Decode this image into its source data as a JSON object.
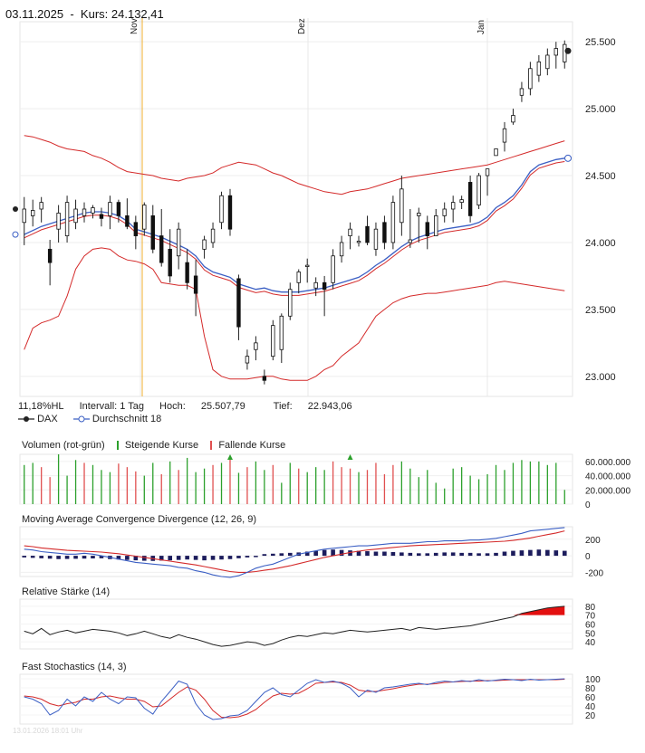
{
  "header": {
    "date": "03.11.2025",
    "separator": "-",
    "kurs_label": "Kurs:",
    "kurs_value": "24.132,41"
  },
  "info": {
    "hl": "11,18%HL",
    "interval": "Intervall: 1 Tag",
    "hoch_label": "Hoch:",
    "hoch_value": "25.507,79",
    "tief_label": "Tief:",
    "tief_value": "22.943,06"
  },
  "legend": {
    "series1": "DAX",
    "series2": "Durchschnitt 18"
  },
  "volume_legend": {
    "title": "Volumen (rot-grün)",
    "up": "Steigende Kurse",
    "down": "Fallende Kurse"
  },
  "footer": "13.01.2026 18:01 Uhr",
  "colors": {
    "up": "#2ca02c",
    "down": "#e05050",
    "band": "#d42a2a",
    "ma": "#3b5fc4",
    "marker": "#f0b030",
    "macd_bar": "#1c1c5c",
    "rsi_fill": "#e31010"
  },
  "chart_data": [
    {
      "type": "candlestick",
      "panel": "price",
      "x_labels": [
        "Nov",
        "Dez",
        "Jan"
      ],
      "y_ticks": [
        "25.500",
        "25.000",
        "24.500",
        "24.000",
        "23.500",
        "23.000"
      ],
      "ylim": [
        22850,
        25650
      ],
      "ohlc": [
        [
          24150,
          24340,
          23980,
          24250
        ],
        [
          24200,
          24320,
          24120,
          24240
        ],
        [
          24250,
          24340,
          24150,
          24300
        ],
        [
          23950,
          24020,
          23680,
          23850
        ],
        [
          24100,
          24280,
          24000,
          24220
        ],
        [
          24050,
          24350,
          24000,
          24300
        ],
        [
          24150,
          24320,
          24100,
          24250
        ],
        [
          24200,
          24300,
          24150,
          24250
        ],
        [
          24220,
          24280,
          24180,
          24260
        ],
        [
          24210,
          24260,
          24120,
          24180
        ],
        [
          24200,
          24350,
          24100,
          24300
        ],
        [
          24300,
          24320,
          24150,
          24200
        ],
        [
          24200,
          24330,
          24100,
          24120
        ],
        [
          24150,
          24200,
          23950,
          24050
        ],
        [
          24100,
          24300,
          24050,
          24280
        ],
        [
          24200,
          24280,
          23920,
          23950
        ],
        [
          24050,
          24250,
          23820,
          23850
        ],
        [
          23950,
          24100,
          23700,
          23750
        ],
        [
          23900,
          24150,
          23800,
          24100
        ],
        [
          23850,
          23950,
          23650,
          23700
        ],
        [
          23750,
          23870,
          23450,
          23620
        ],
        [
          23950,
          24050,
          23880,
          24020
        ],
        [
          24000,
          24150,
          23960,
          24100
        ],
        [
          24150,
          24380,
          24100,
          24350
        ],
        [
          24350,
          24400,
          24050,
          24100
        ],
        [
          23730,
          23760,
          23270,
          23370
        ],
        [
          23100,
          23200,
          23050,
          23150
        ],
        [
          23200,
          23300,
          23120,
          23250
        ],
        [
          23000,
          23050,
          22940,
          22970
        ],
        [
          23150,
          23420,
          23120,
          23380
        ],
        [
          23200,
          23470,
          23100,
          23450
        ],
        [
          23450,
          23700,
          23420,
          23650
        ],
        [
          23700,
          23800,
          23620,
          23780
        ],
        [
          23820,
          23880,
          23700,
          23830
        ],
        [
          23660,
          23740,
          23600,
          23700
        ],
        [
          23700,
          23750,
          23450,
          23650
        ],
        [
          23700,
          23950,
          23650,
          23900
        ],
        [
          23900,
          24050,
          23850,
          24000
        ],
        [
          24050,
          24150,
          23950,
          24100
        ],
        [
          24000,
          24050,
          23970,
          24010
        ],
        [
          24120,
          24200,
          23980,
          24000
        ],
        [
          23950,
          24150,
          23900,
          24100
        ],
        [
          24150,
          24200,
          23950,
          24000
        ],
        [
          24000,
          24350,
          23950,
          24300
        ],
        [
          24150,
          24500,
          24050,
          24400
        ],
        [
          24000,
          24250,
          23960,
          24020
        ],
        [
          24200,
          24260,
          24000,
          24220
        ],
        [
          24150,
          24200,
          23950,
          24050
        ],
        [
          24050,
          24250,
          24050,
          24200
        ],
        [
          24200,
          24300,
          24150,
          24250
        ],
        [
          24250,
          24350,
          24150,
          24300
        ],
        [
          24300,
          24350,
          24250,
          24320
        ],
        [
          24450,
          24500,
          24150,
          24200
        ],
        [
          24280,
          24520,
          24250,
          24500
        ],
        [
          24500,
          24550,
          24350,
          24550
        ],
        [
          24650,
          24700,
          24650,
          24700
        ],
        [
          24750,
          24900,
          24680,
          24850
        ],
        [
          24900,
          25000,
          24880,
          24950
        ],
        [
          25100,
          25200,
          25050,
          25150
        ],
        [
          25150,
          25350,
          25100,
          25300
        ],
        [
          25250,
          25400,
          25200,
          25350
        ],
        [
          25300,
          25450,
          25250,
          25400
        ],
        [
          25400,
          25500,
          25300,
          25450
        ],
        [
          25350,
          25510,
          25300,
          25480
        ]
      ],
      "ma18": [
        24060,
        24090,
        24120,
        24140,
        24160,
        24180,
        24200,
        24220,
        24230,
        24230,
        24220,
        24200,
        24160,
        24100,
        24080,
        24060,
        24040,
        24010,
        23980,
        23950,
        23900,
        23820,
        23780,
        23760,
        23740,
        23690,
        23670,
        23650,
        23660,
        23640,
        23630,
        23630,
        23630,
        23640,
        23650,
        23660,
        23680,
        23700,
        23720,
        23740,
        23780,
        23830,
        23870,
        23920,
        23970,
        24010,
        24040,
        24060,
        24080,
        24100,
        24110,
        24120,
        24130,
        24150,
        24190,
        24260,
        24300,
        24350,
        24430,
        24530,
        24580,
        24600,
        24620,
        24630
      ],
      "band_upper": [
        24800,
        24790,
        24770,
        24750,
        24720,
        24700,
        24690,
        24680,
        24650,
        24630,
        24600,
        24560,
        24530,
        24520,
        24510,
        24500,
        24480,
        24470,
        24460,
        24480,
        24490,
        24500,
        24520,
        24560,
        24580,
        24600,
        24590,
        24580,
        24550,
        24520,
        24500,
        24470,
        24440,
        24420,
        24400,
        24380,
        24370,
        24360,
        24380,
        24390,
        24400,
        24420,
        24440,
        24460,
        24480,
        24490,
        24500,
        24510,
        24520,
        24530,
        24540,
        24550,
        24560,
        24570,
        24580,
        24600,
        24620,
        24640,
        24660,
        24680,
        24700,
        24720,
        24740,
        24760
      ],
      "band_lower": [
        23200,
        23360,
        23400,
        23420,
        23450,
        23600,
        23800,
        23900,
        23950,
        23960,
        23950,
        23900,
        23870,
        23860,
        23840,
        23800,
        23700,
        23690,
        23680,
        23680,
        23650,
        23300,
        23050,
        23000,
        22980,
        22980,
        22980,
        22990,
        23000,
        23000,
        22980,
        22970,
        22970,
        22970,
        23000,
        23050,
        23080,
        23150,
        23200,
        23250,
        23350,
        23450,
        23500,
        23550,
        23580,
        23600,
        23610,
        23620,
        23620,
        23630,
        23640,
        23650,
        23660,
        23670,
        23680,
        23700,
        23710,
        23700,
        23690,
        23680,
        23670,
        23660,
        23650,
        23640
      ],
      "last_marker": 24132
    },
    {
      "type": "bar",
      "panel": "volume",
      "y_ticks": [
        "60.000.000",
        "40.000.000",
        "20.000.000",
        "0"
      ],
      "ylim": [
        0,
        70000000
      ],
      "values": [
        55,
        58,
        52,
        38,
        72,
        40,
        62,
        58,
        55,
        48,
        45,
        57,
        52,
        46,
        40,
        58,
        42,
        60,
        48,
        65,
        45,
        50,
        55,
        58,
        68,
        44,
        52,
        60,
        48,
        55,
        30,
        58,
        50,
        45,
        52,
        48,
        60,
        52,
        50,
        45,
        48,
        58,
        42,
        55,
        60,
        50,
        38,
        48,
        30,
        22,
        50,
        52,
        40,
        35,
        42,
        55,
        48,
        58,
        62,
        60,
        60,
        55,
        58,
        20
      ],
      "directions": [
        "up",
        "up",
        "down",
        "down",
        "up",
        "up",
        "up",
        "down",
        "up",
        "up",
        "up",
        "down",
        "down",
        "down",
        "up",
        "up",
        "down",
        "up",
        "down",
        "up",
        "up",
        "up",
        "down",
        "up",
        "down",
        "up",
        "down",
        "up",
        "up",
        "down",
        "up",
        "up",
        "down",
        "up",
        "up",
        "up",
        "down",
        "down",
        "down",
        "up",
        "down",
        "down",
        "down",
        "down",
        "up",
        "up",
        "up",
        "up",
        "up",
        "up",
        "up",
        "up",
        "up",
        "up",
        "up",
        "up",
        "up",
        "up",
        "up",
        "up",
        "up",
        "up",
        "up",
        "up"
      ],
      "overflow_arrows": [
        24,
        38
      ]
    },
    {
      "type": "line",
      "panel": "macd",
      "title": "Moving Average Convergence Divergence (12, 26, 9)",
      "y_ticks": [
        "200",
        "0",
        "-200"
      ],
      "ylim": [
        -250,
        350
      ],
      "macd": [
        80,
        70,
        50,
        40,
        30,
        20,
        20,
        30,
        20,
        0,
        -20,
        -40,
        -60,
        -80,
        -90,
        -100,
        -110,
        -120,
        -140,
        -150,
        -180,
        -200,
        -230,
        -250,
        -260,
        -240,
        -200,
        -150,
        -120,
        -100,
        -60,
        -20,
        20,
        40,
        60,
        80,
        90,
        100,
        110,
        120,
        120,
        130,
        140,
        150,
        150,
        150,
        160,
        170,
        170,
        180,
        180,
        180,
        190,
        190,
        200,
        210,
        230,
        250,
        270,
        300,
        310,
        320,
        330,
        340
      ],
      "signal": [
        120,
        110,
        95,
        85,
        75,
        65,
        60,
        55,
        50,
        45,
        35,
        25,
        10,
        -5,
        -20,
        -35,
        -50,
        -65,
        -80,
        -95,
        -110,
        -130,
        -150,
        -170,
        -190,
        -200,
        -200,
        -190,
        -175,
        -160,
        -140,
        -120,
        -95,
        -70,
        -45,
        -20,
        0,
        20,
        40,
        55,
        70,
        80,
        90,
        100,
        110,
        120,
        125,
        130,
        135,
        140,
        145,
        150,
        155,
        160,
        165,
        170,
        175,
        185,
        200,
        215,
        235,
        255,
        275,
        300
      ],
      "histogram": [
        -20,
        -25,
        -30,
        -35,
        -40,
        -38,
        -36,
        -34,
        -32,
        -30,
        -40,
        -45,
        -50,
        -55,
        -60,
        -62,
        -58,
        -55,
        -50,
        -45,
        -50,
        -55,
        -50,
        -45,
        -40,
        -30,
        -20,
        -10,
        20,
        25,
        30,
        35,
        40,
        50,
        60,
        70,
        75,
        70,
        65,
        60,
        55,
        50,
        50,
        45,
        40,
        35,
        30,
        30,
        35,
        40,
        40,
        35,
        35,
        30,
        30,
        35,
        50,
        60,
        65,
        70,
        75,
        70,
        65,
        60
      ]
    },
    {
      "type": "line",
      "panel": "rsi",
      "title": "Relative Stärke (14)",
      "y_ticks": [
        "80",
        "70",
        "60",
        "50",
        "40"
      ],
      "ylim": [
        32,
        88
      ],
      "values": [
        52,
        49,
        55,
        48,
        51,
        53,
        50,
        52,
        54,
        53,
        52,
        50,
        47,
        49,
        52,
        49,
        46,
        44,
        48,
        45,
        43,
        40,
        37,
        35,
        36,
        38,
        40,
        39,
        36,
        38,
        42,
        45,
        47,
        46,
        48,
        50,
        49,
        51,
        53,
        52,
        51,
        52,
        53,
        54,
        55,
        53,
        56,
        55,
        54,
        55,
        56,
        57,
        58,
        60,
        62,
        64,
        66,
        68,
        72,
        74,
        76,
        78,
        79,
        80
      ]
    },
    {
      "type": "line",
      "panel": "stochastic",
      "title": "Fast Stochastics (14, 3)",
      "y_ticks": [
        "100",
        "80",
        "60",
        "40",
        "20"
      ],
      "ylim": [
        0,
        110
      ],
      "k": [
        60,
        55,
        45,
        20,
        30,
        55,
        40,
        60,
        50,
        70,
        55,
        45,
        60,
        58,
        35,
        22,
        50,
        72,
        95,
        88,
        45,
        20,
        10,
        12,
        18,
        20,
        30,
        50,
        70,
        80,
        65,
        60,
        75,
        90,
        98,
        92,
        95,
        90,
        80,
        60,
        75,
        70,
        80,
        82,
        85,
        88,
        90,
        87,
        92,
        95,
        93,
        96,
        94,
        98,
        95,
        97,
        99,
        98,
        96,
        99,
        97,
        98,
        99,
        100
      ],
      "d": [
        62,
        60,
        55,
        45,
        40,
        45,
        48,
        55,
        55,
        60,
        62,
        58,
        55,
        55,
        50,
        38,
        40,
        55,
        70,
        82,
        75,
        55,
        30,
        15,
        14,
        16,
        22,
        32,
        48,
        62,
        68,
        66,
        68,
        78,
        90,
        92,
        93,
        92,
        86,
        75,
        72,
        72,
        75,
        78,
        82,
        85,
        88,
        88,
        89,
        92,
        93,
        94,
        95,
        95,
        96,
        96,
        97,
        98,
        98,
        98,
        98,
        98,
        98,
        99
      ]
    }
  ]
}
